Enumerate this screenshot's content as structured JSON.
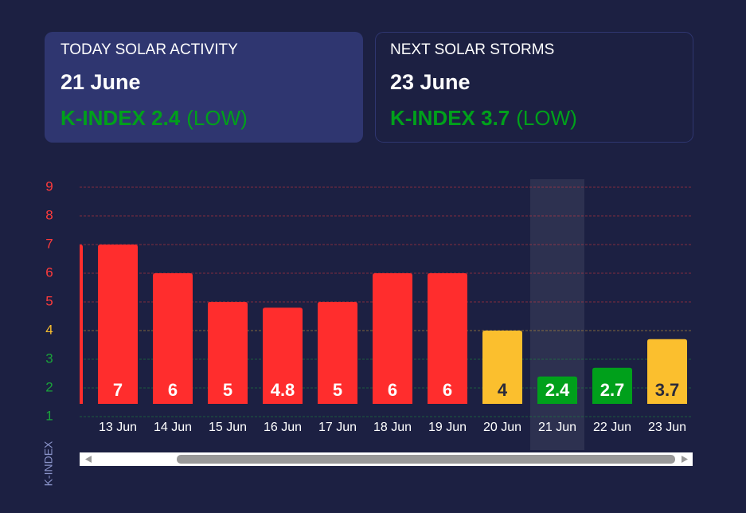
{
  "cards": [
    {
      "label": "TODAY SOLAR ACTIVITY",
      "date": "21 June",
      "index": "K-INDEX 2.4",
      "level": "(LOW)"
    },
    {
      "label": "NEXT SOLAR STORMS",
      "date": "23 June",
      "index": "K-INDEX 3.7",
      "level": "(LOW)"
    }
  ],
  "chart_data": {
    "type": "bar",
    "ylabel": "K-INDEX",
    "categories": [
      null,
      "13 Jun",
      "14 Jun",
      "15 Jun",
      "16 Jun",
      "17 Jun",
      "18 Jun",
      "19 Jun",
      "20 Jun",
      "21 Jun",
      "22 Jun",
      "23 Jun"
    ],
    "values": [
      7,
      7,
      6,
      5,
      4.8,
      5,
      6,
      6,
      4,
      2.4,
      2.7,
      3.7
    ],
    "colors": [
      "#ff2d2d",
      "#ff2d2d",
      "#ff2d2d",
      "#ff2d2d",
      "#ff2d2d",
      "#ff2d2d",
      "#ff2d2d",
      "#ff2d2d",
      "#fbbf2e",
      "#00a01b",
      "#00a01b",
      "#fbbf2e"
    ],
    "ylim": [
      1,
      9
    ],
    "yticks": [
      1,
      2,
      3,
      4,
      5,
      6,
      7,
      8,
      9
    ],
    "ytick_colors": [
      "#1aa33a",
      "#1aa33a",
      "#1aa33a",
      "#fbbf2e",
      "#ff3b3b",
      "#ff3b3b",
      "#ff3b3b",
      "#ff3b3b",
      "#ff3b3b"
    ],
    "grid": true,
    "highlight": "21 Jun"
  }
}
